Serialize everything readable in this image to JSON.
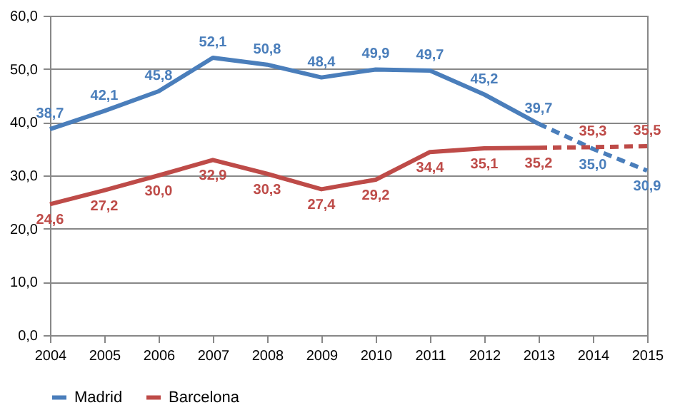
{
  "chart_data": {
    "type": "line",
    "x": [
      2004,
      2005,
      2006,
      2007,
      2008,
      2009,
      2010,
      2011,
      2012,
      2013,
      2014,
      2015
    ],
    "series": [
      {
        "name": "Madrid",
        "color": "#4a7ebb",
        "line_style": "solid",
        "values": [
          38.7,
          42.1,
          45.8,
          52.1,
          50.8,
          48.4,
          49.9,
          49.7,
          45.2,
          39.7,
          null,
          null
        ],
        "value_labels": [
          "38,7",
          "42,1",
          "45,8",
          "52,1",
          "50,8",
          "48,4",
          "49,9",
          "49,7",
          "45,2",
          "39,7",
          null,
          null
        ]
      },
      {
        "name": "Barcelona",
        "color": "#be4b48",
        "line_style": "solid",
        "values": [
          24.6,
          27.2,
          30.0,
          32.9,
          30.3,
          27.4,
          29.2,
          34.4,
          35.1,
          35.2,
          null,
          null
        ],
        "value_labels": [
          "24,6",
          "27,2",
          "30,0",
          "32,9",
          "30,3",
          "27,4",
          "29,2",
          "34,4",
          "35,1",
          "35,2",
          null,
          null
        ]
      },
      {
        "color": "#4a7ebb",
        "line_style": "dashed",
        "values": [
          null,
          null,
          null,
          null,
          null,
          null,
          null,
          null,
          null,
          39.7,
          35.0,
          30.9
        ],
        "value_labels": [
          null,
          null,
          null,
          null,
          null,
          null,
          null,
          null,
          null,
          null,
          "35,0",
          "30,9"
        ]
      },
      {
        "color": "#be4b48",
        "line_style": "dashed",
        "values": [
          null,
          null,
          null,
          null,
          null,
          null,
          null,
          null,
          null,
          35.2,
          35.3,
          35.5
        ],
        "value_labels": [
          null,
          null,
          null,
          null,
          null,
          null,
          null,
          null,
          null,
          null,
          "35,3",
          "35,5"
        ]
      }
    ],
    "xlim": [
      2004,
      2015
    ],
    "xticks": [
      2004,
      2005,
      2006,
      2007,
      2008,
      2009,
      2010,
      2011,
      2012,
      2013,
      2014,
      2015
    ],
    "ylim": [
      0,
      60
    ],
    "yticks": [
      {
        "value": 0,
        "label": "0,0"
      },
      {
        "value": 10,
        "label": "10,0"
      },
      {
        "value": 20,
        "label": "20,0"
      },
      {
        "value": 30,
        "label": "30,0"
      },
      {
        "value": 40,
        "label": "40,0"
      },
      {
        "value": 50,
        "label": "50,0"
      },
      {
        "value": 60,
        "label": "60,0"
      }
    ],
    "grid": "y",
    "legend": "bottom",
    "marker": "none"
  }
}
